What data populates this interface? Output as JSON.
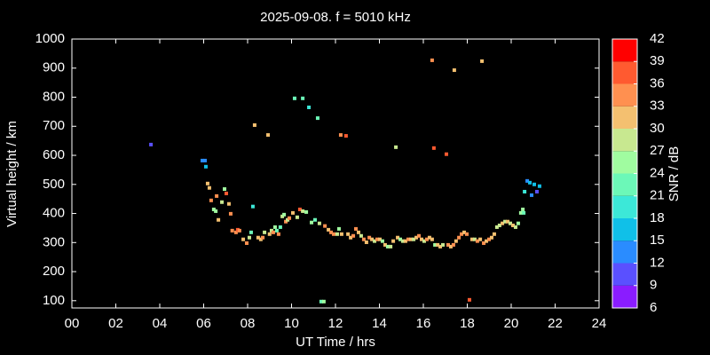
{
  "chart_data": {
    "type": "scatter",
    "title": "2025-09-08. f = 5010 kHz",
    "x_label": "UT Time / hrs",
    "y_label": "Virtual height / km",
    "xlim": [
      0,
      24
    ],
    "ylim": [
      75,
      1000
    ],
    "xticks": [
      {
        "value": 0,
        "label": "00"
      },
      {
        "value": 2,
        "label": "02"
      },
      {
        "value": 4,
        "label": "04"
      },
      {
        "value": 6,
        "label": "06"
      },
      {
        "value": 8,
        "label": "08"
      },
      10,
      12,
      14,
      16,
      18,
      20,
      22,
      24
    ],
    "yticks": [
      100,
      200,
      300,
      400,
      500,
      600,
      700,
      800,
      900,
      1000
    ],
    "colorbar": {
      "label": "SNR / dB",
      "ticks": [
        6,
        9,
        12,
        15,
        18,
        21,
        24,
        27,
        30,
        33,
        36,
        39,
        42
      ],
      "colors": [
        "#8a1cff",
        "#5a50ff",
        "#2a8cff",
        "#10c0e8",
        "#3ce8d8",
        "#6cf8b8",
        "#a0fca0",
        "#c8e890",
        "#f4c070",
        "#ff9050",
        "#ff5a30",
        "#ff0000"
      ]
    },
    "x": [
      3.6,
      5.94,
      6.06,
      6.1,
      6.18,
      6.26,
      6.34,
      6.46,
      6.55,
      6.59,
      6.67,
      6.83,
      6.95,
      7.03,
      7.15,
      7.23,
      7.3,
      7.47,
      7.55,
      7.63,
      7.8,
      7.96,
      8.08,
      8.16,
      8.24,
      8.32,
      8.48,
      8.6,
      8.69,
      8.77,
      8.93,
      9.0,
      9.09,
      9.17,
      9.25,
      9.33,
      9.41,
      9.49,
      9.58,
      9.66,
      9.74,
      9.82,
      9.9,
      10.06,
      10.14,
      10.26,
      10.38,
      10.51,
      10.51,
      10.67,
      10.79,
      10.91,
      11.07,
      11.19,
      11.27,
      11.35,
      11.47,
      11.52,
      11.68,
      11.8,
      11.92,
      12.08,
      12.16,
      12.24,
      12.28,
      12.48,
      12.57,
      12.69,
      12.81,
      12.93,
      13.05,
      13.17,
      13.29,
      13.41,
      13.54,
      13.66,
      13.78,
      13.9,
      14.02,
      14.14,
      14.26,
      14.38,
      14.51,
      14.63,
      14.75,
      14.83,
      14.95,
      15.07,
      15.19,
      15.31,
      15.43,
      15.56,
      15.68,
      15.8,
      15.92,
      16.04,
      16.16,
      16.28,
      16.4,
      16.4,
      16.48,
      16.53,
      16.65,
      16.77,
      16.89,
      17.05,
      17.13,
      17.25,
      17.37,
      17.41,
      17.49,
      17.62,
      17.74,
      17.86,
      17.98,
      18.1,
      18.22,
      18.34,
      18.46,
      18.59,
      18.67,
      18.75,
      18.87,
      18.99,
      19.11,
      19.23,
      19.35,
      19.47,
      19.6,
      19.72,
      19.84,
      19.96,
      20.08,
      20.2,
      20.32,
      20.44,
      20.53,
      20.57,
      20.61,
      20.73,
      20.85,
      20.93,
      21.05,
      21.17,
      21.29
    ],
    "values": [
      637,
      582,
      582,
      561,
      503,
      488,
      445,
      414,
      408,
      460,
      378,
      439,
      484,
      469,
      433,
      399,
      341,
      335,
      344,
      341,
      311,
      298,
      317,
      335,
      424,
      704,
      317,
      311,
      317,
      335,
      670,
      329,
      341,
      335,
      353,
      341,
      329,
      353,
      390,
      396,
      372,
      378,
      384,
      402,
      796,
      387,
      414,
      408,
      796,
      405,
      765,
      369,
      378,
      728,
      366,
      97,
      97,
      357,
      344,
      335,
      329,
      329,
      347,
      670,
      329,
      667,
      329,
      317,
      323,
      347,
      335,
      323,
      311,
      301,
      317,
      311,
      305,
      311,
      311,
      305,
      292,
      286,
      286,
      305,
      628,
      317,
      311,
      305,
      305,
      311,
      311,
      311,
      317,
      323,
      311,
      305,
      311,
      317,
      927,
      311,
      625,
      292,
      292,
      286,
      292,
      604,
      292,
      286,
      292,
      893,
      305,
      317,
      329,
      335,
      329,
      103,
      311,
      311,
      305,
      311,
      924,
      298,
      305,
      311,
      317,
      329,
      353,
      359,
      366,
      372,
      372,
      366,
      359,
      353,
      366,
      402,
      414,
      402,
      475,
      512,
      506,
      463,
      500,
      475,
      494
    ],
    "snr": [
      10,
      13,
      13,
      16,
      31,
      31,
      34,
      25,
      25,
      34,
      31,
      28,
      25,
      37,
      31,
      34,
      34,
      34,
      37,
      34,
      31,
      34,
      28,
      22,
      19,
      31,
      31,
      31,
      34,
      28,
      31,
      31,
      28,
      34,
      25,
      22,
      34,
      22,
      28,
      25,
      34,
      28,
      34,
      31,
      22,
      28,
      37,
      28,
      22,
      25,
      19,
      25,
      22,
      22,
      28,
      22,
      25,
      34,
      31,
      34,
      34,
      28,
      25,
      34,
      31,
      37,
      31,
      31,
      34,
      34,
      31,
      28,
      34,
      31,
      34,
      31,
      28,
      34,
      31,
      25,
      31,
      25,
      28,
      31,
      28,
      31,
      25,
      28,
      31,
      34,
      31,
      28,
      31,
      34,
      31,
      28,
      34,
      31,
      34,
      31,
      37,
      25,
      31,
      31,
      28,
      37,
      34,
      31,
      34,
      31,
      31,
      34,
      34,
      31,
      34,
      37,
      31,
      28,
      34,
      31,
      31,
      34,
      31,
      34,
      31,
      31,
      28,
      28,
      31,
      28,
      31,
      28,
      31,
      28,
      25,
      25,
      25,
      22,
      19,
      13,
      16,
      13,
      16,
      10,
      16
    ]
  }
}
